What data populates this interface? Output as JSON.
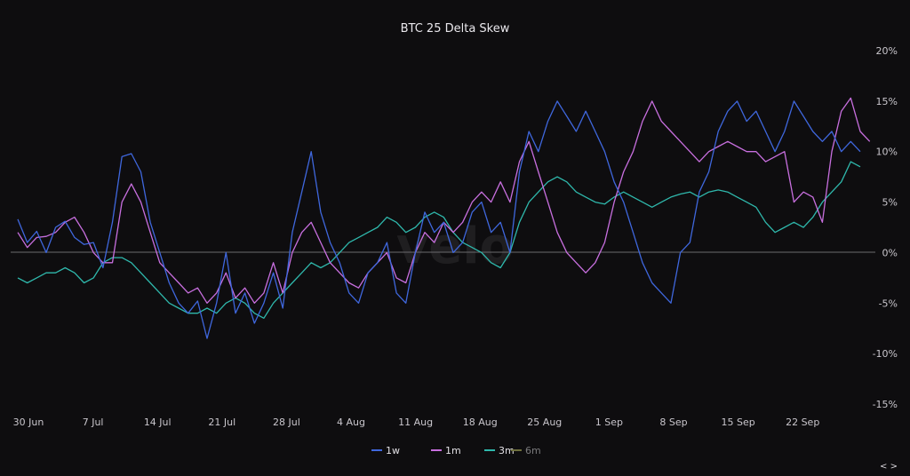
{
  "chart_data": {
    "type": "line",
    "title": "BTC 25 Delta Skew",
    "xlabel": "",
    "ylabel": "",
    "watermark": "velo",
    "x_ticks": [
      "30 Jun",
      "7 Jul",
      "14 Jul",
      "21 Jul",
      "28 Jul",
      "4 Aug",
      "11 Aug",
      "18 Aug",
      "25 Aug",
      "1 Sep",
      "8 Sep",
      "15 Sep",
      "22 Sep"
    ],
    "y_ticks": [
      "20%",
      "15%",
      "10%",
      "5%",
      "0%",
      "-5%",
      "-10%",
      "-15%"
    ],
    "ylim": [
      -15,
      20
    ],
    "xlim": [
      0,
      89
    ],
    "grid": false,
    "zero_line": true,
    "legend_position": "bottom-center",
    "nav_label": "< >",
    "series": [
      {
        "name": "1w",
        "color": "#3f67dd",
        "values": [
          3.3,
          1,
          2.1,
          0,
          2.5,
          3.1,
          1.5,
          0.8,
          1,
          -1.5,
          3,
          9.5,
          9.8,
          8,
          3,
          0,
          -3,
          -5,
          -6,
          -4.8,
          -8.5,
          -5,
          0,
          -6,
          -4,
          -7,
          -5,
          -2,
          -5.5,
          2,
          6,
          10,
          4,
          1,
          -1,
          -4,
          -5,
          -2,
          -1,
          1,
          -4,
          -5,
          0,
          4,
          2,
          3,
          0,
          1,
          4,
          5,
          2,
          3,
          0,
          8,
          12,
          10,
          13,
          15,
          13.5,
          12,
          14,
          12,
          10,
          7,
          5,
          2,
          -1,
          -3,
          -4,
          -5,
          0,
          1,
          6,
          8,
          12,
          14,
          15,
          13,
          14,
          12,
          10,
          12,
          15,
          13.5,
          12,
          11,
          12,
          10,
          11,
          10
        ]
      },
      {
        "name": "1m",
        "color": "#c86fdf",
        "values": [
          2,
          0.5,
          1.5,
          1.6,
          2,
          3,
          3.5,
          2,
          0,
          -1,
          -1,
          5,
          6.8,
          5,
          2,
          -1,
          -2,
          -3,
          -4,
          -3.5,
          -5,
          -4,
          -2,
          -4.5,
          -3.5,
          -5,
          -4,
          -1,
          -4,
          0,
          2,
          3,
          1,
          -1,
          -2,
          -3,
          -3.5,
          -2,
          -1,
          0,
          -2.5,
          -3,
          0,
          2,
          1,
          3,
          2,
          3,
          5,
          6,
          5,
          7,
          5,
          9,
          11,
          8,
          5,
          2,
          0,
          -1,
          -2,
          -1,
          1,
          5,
          8,
          10,
          13,
          15,
          13,
          12,
          11,
          10,
          9,
          10,
          10.5,
          11,
          10.5,
          10,
          10,
          9,
          9.5,
          10,
          5,
          6,
          5.5,
          3,
          10,
          14,
          15.3,
          12,
          11
        ]
      },
      {
        "name": "3m",
        "color": "#2fb8ac",
        "values": [
          -2.5,
          -3,
          -2.5,
          -2,
          -2,
          -1.5,
          -2,
          -3,
          -2.5,
          -1,
          -0.5,
          -0.5,
          -1,
          -2,
          -3,
          -4,
          -5,
          -5.5,
          -6,
          -6,
          -5.5,
          -6,
          -5,
          -4.5,
          -5,
          -6,
          -6.5,
          -5,
          -4,
          -3,
          -2,
          -1,
          -1.5,
          -1,
          0,
          1,
          1.5,
          2,
          2.5,
          3.5,
          3,
          2,
          2.5,
          3.5,
          4,
          3.5,
          2,
          1,
          0.5,
          0,
          -1,
          -1.5,
          0,
          3,
          5,
          6,
          7,
          7.5,
          7,
          6,
          5.5,
          5,
          4.8,
          5.5,
          6,
          5.5,
          5,
          4.5,
          5,
          5.5,
          5.8,
          6,
          5.5,
          6,
          6.2,
          6,
          5.5,
          5,
          4.5,
          3,
          2,
          2.5,
          3,
          2.5,
          3.5,
          5,
          6,
          7,
          9,
          8.5
        ]
      },
      {
        "name": "6m",
        "color": "#6e6f3d",
        "values": []
      }
    ]
  }
}
